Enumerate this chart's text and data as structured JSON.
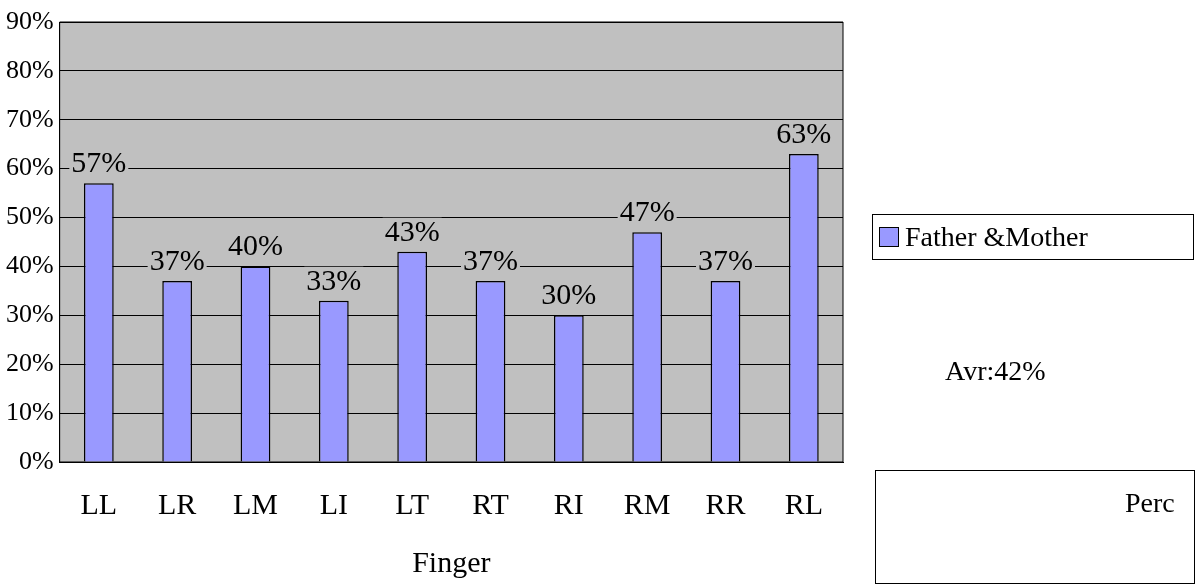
{
  "chart_data": {
    "type": "bar",
    "xlabel": "Finger",
    "categories": [
      "LL",
      "LR",
      "LM",
      "LI",
      "LT",
      "RT",
      "RI",
      "RM",
      "RR",
      "RL"
    ],
    "series": [
      {
        "name": "Father &Mother",
        "color": "#9999ff",
        "values": [
          57,
          37,
          40,
          33,
          43,
          37,
          30,
          47,
          37,
          63
        ],
        "value_labels": [
          "57%",
          "37%",
          "40%",
          "33%",
          "43%",
          "37%",
          "30%",
          "47%",
          "37%",
          "63%"
        ]
      }
    ],
    "ylim": [
      0,
      90
    ],
    "yticks": [
      {
        "value": 0,
        "label": "0%"
      },
      {
        "value": 10,
        "label": "10%"
      },
      {
        "value": 20,
        "label": "20%"
      },
      {
        "value": 30,
        "label": "30%"
      },
      {
        "value": 40,
        "label": "40%"
      },
      {
        "value": 50,
        "label": "50%"
      },
      {
        "value": 60,
        "label": "60%"
      },
      {
        "value": 70,
        "label": "70%"
      },
      {
        "value": 80,
        "label": "80%"
      },
      {
        "value": 90,
        "label": "90%"
      }
    ],
    "grid": "y",
    "legend": "right",
    "annotations": [
      "Avr:42%",
      "Perc"
    ]
  }
}
